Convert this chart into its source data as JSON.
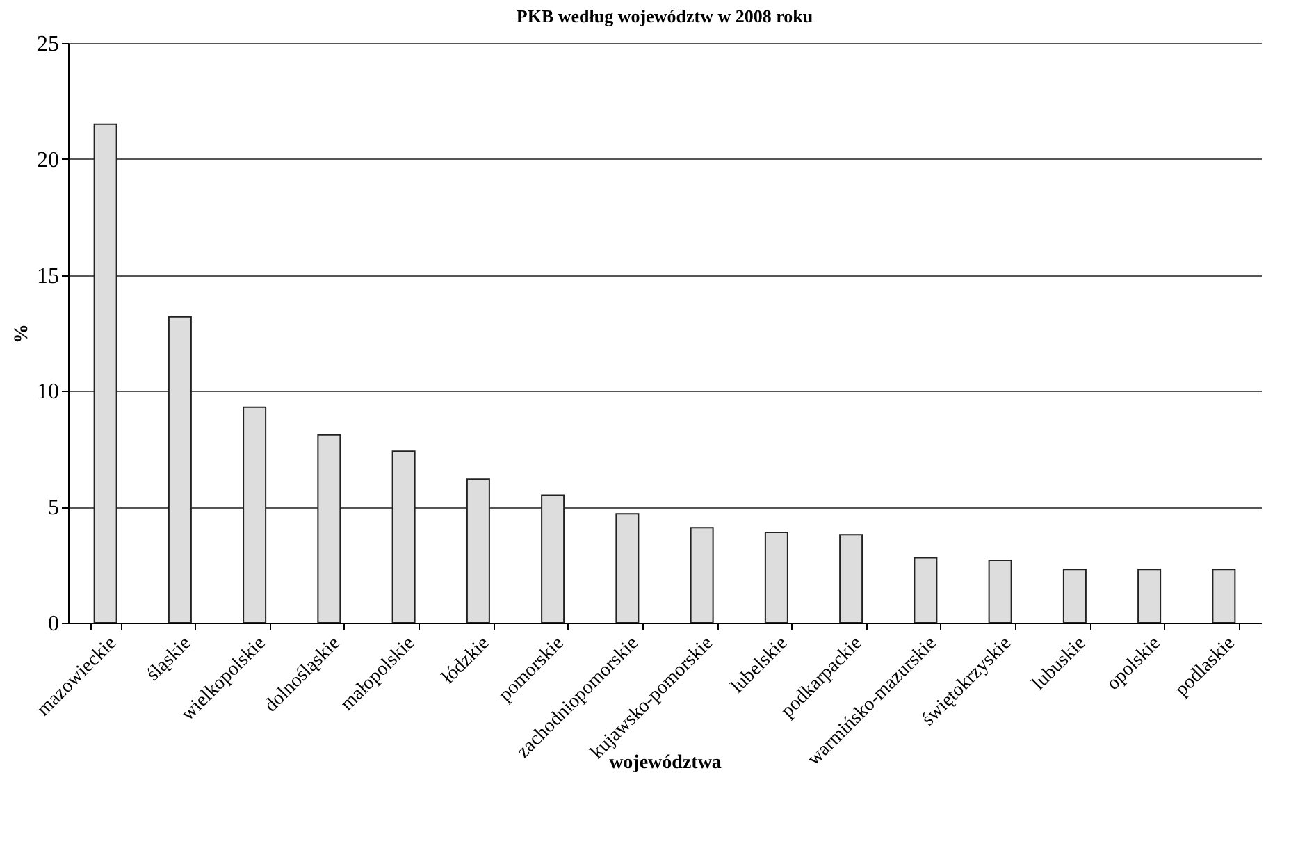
{
  "chart_data": {
    "type": "bar",
    "title": "PKB według województw w 2008 roku",
    "xlabel": "województwa",
    "ylabel": "%",
    "categories": [
      "mazowieckie",
      "śląskie",
      "wielkopolskie",
      "dolnośląskie",
      "małopolskie",
      "łódzkie",
      "pomorskie",
      "zachodniopomorskie",
      "kujawsko-pomorskie",
      "lubelskie",
      "podkarpackie",
      "warmińsko-mazurskie",
      "świętokrzyskie",
      "lubuskie",
      "opolskie",
      "podlaskie"
    ],
    "values": [
      21.5,
      13.2,
      9.3,
      8.1,
      7.4,
      6.2,
      5.5,
      4.7,
      4.1,
      3.9,
      3.8,
      2.8,
      2.7,
      2.3,
      2.3,
      2.3
    ],
    "color": "#dddddd",
    "ylim": [
      0,
      25
    ],
    "yticks": [
      0,
      5,
      10,
      15,
      20,
      25
    ],
    "grid": "y"
  }
}
